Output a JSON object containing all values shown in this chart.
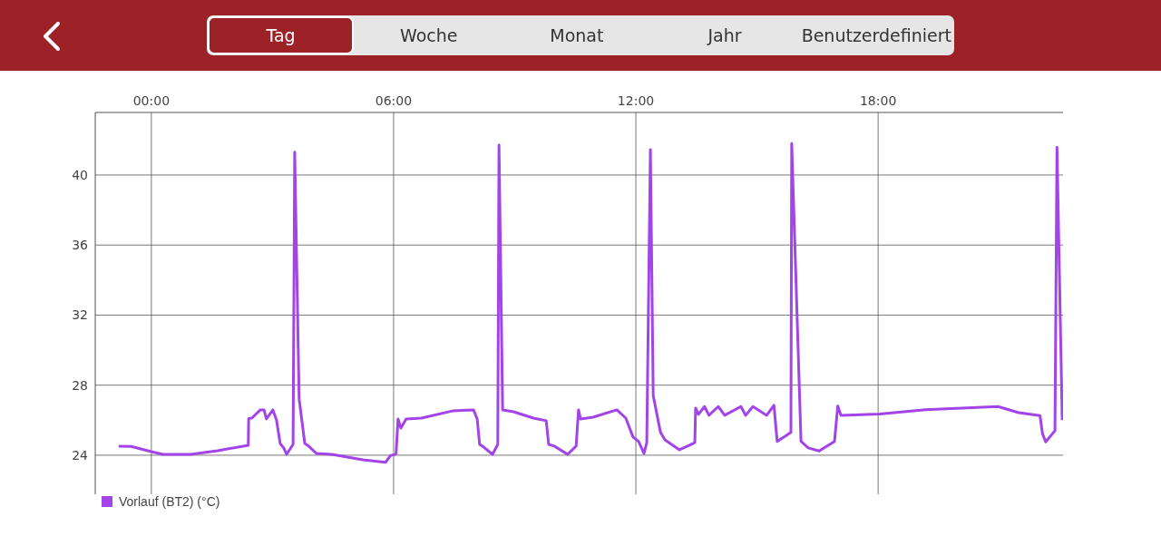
{
  "chart_data": {
    "type": "line",
    "annotations": [
      "Tag",
      "Woche",
      "Monat",
      "Jahr",
      "Benutzerdefiniert"
    ],
    "x": [
      -0.81,
      -0.5,
      0,
      0.29,
      0.97,
      1.64,
      2.4,
      2.41,
      2.49,
      2.7,
      2.79,
      2.85,
      3.01,
      3.1,
      3.19,
      3.28,
      3.35,
      3.51,
      3.55,
      3.66,
      3.8,
      3.87,
      4.09,
      4.47,
      5.24,
      5.8,
      5.92,
      6.06,
      6.11,
      6.18,
      6.31,
      6.69,
      7.48,
      7.98,
      8.07,
      8.13,
      8.2,
      8.45,
      8.58,
      8.61,
      8.7,
      8.97,
      9.46,
      9.78,
      9.84,
      9.98,
      10.31,
      10.52,
      10.58,
      10.63,
      10.94,
      11.53,
      11.75,
      11.93,
      12.07,
      12.2,
      12.27,
      12.36,
      12.43,
      12.61,
      12.72,
      13.08,
      13.33,
      13.46,
      13.48,
      13.55,
      13.7,
      13.81,
      14.04,
      14.2,
      14.6,
      14.72,
      14.9,
      15.24,
      15.42,
      15.5,
      15.84,
      15.86,
      16.09,
      16.27,
      16.54,
      16.92,
      17.0,
      17.08,
      18.04,
      19.17,
      20.97,
      21.48,
      22.01,
      22.07,
      22.15,
      22.38,
      22.43,
      22.56
    ],
    "series": [
      {
        "name": "Vorlauf (BT2) (°C)",
        "color": "#a244e8",
        "values": [
          24.52,
          24.5,
          24.2,
          24.05,
          24.05,
          24.26,
          24.57,
          26.09,
          26.12,
          26.59,
          26.59,
          26.07,
          26.59,
          26.0,
          24.67,
          24.4,
          24.05,
          24.62,
          41.3,
          27.2,
          24.67,
          24.57,
          24.1,
          24.05,
          23.74,
          23.59,
          23.98,
          24.07,
          26.07,
          25.55,
          26.07,
          26.12,
          26.54,
          26.59,
          26.07,
          24.62,
          24.52,
          24.05,
          24.62,
          41.71,
          26.59,
          26.48,
          26.12,
          25.97,
          24.62,
          24.52,
          24.05,
          24.52,
          26.59,
          26.07,
          26.17,
          26.59,
          26.12,
          25.04,
          24.78,
          24.1,
          24.72,
          41.45,
          27.4,
          25.31,
          24.88,
          24.31,
          24.57,
          24.72,
          26.69,
          26.33,
          26.78,
          26.28,
          26.78,
          26.28,
          26.78,
          26.28,
          26.78,
          26.28,
          26.85,
          24.79,
          25.31,
          41.8,
          24.79,
          24.42,
          24.24,
          24.79,
          26.8,
          26.28,
          26.35,
          26.6,
          26.78,
          26.43,
          26.26,
          25.24,
          24.76,
          25.4,
          41.57,
          26.0
        ]
      }
    ],
    "xlim": [
      -1.39,
      22.58
    ],
    "ylim": [
      21.77,
      43.57
    ],
    "xticks": [
      {
        "value": 0,
        "label": "00:00"
      },
      {
        "value": 6,
        "label": "06:00"
      },
      {
        "value": 12,
        "label": "12:00"
      },
      {
        "value": 18,
        "label": "18:00"
      }
    ],
    "yticks": [
      24,
      28,
      32,
      36,
      40
    ],
    "grid": true,
    "legend": "bottom left",
    "marker": "none",
    "line_style": "solid"
  }
}
